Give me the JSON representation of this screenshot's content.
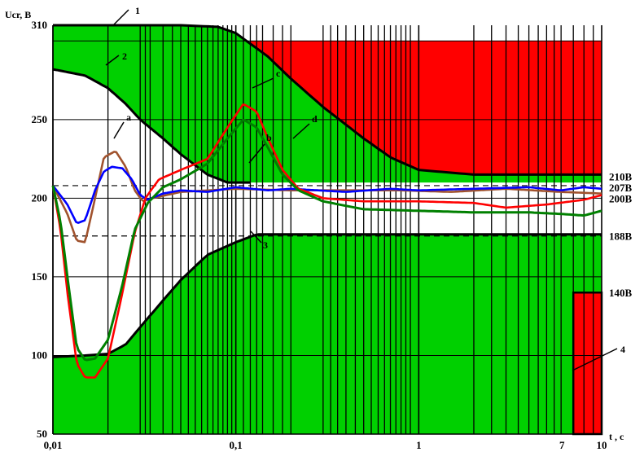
{
  "chart_data": {
    "type": "line",
    "ylabel": "Ucr, B",
    "xlabel": "t , c",
    "x_scale": "log",
    "xlim": [
      0.01,
      10
    ],
    "ylim": [
      50,
      310
    ],
    "x_ticks": [
      {
        "value": 0.01,
        "label": "0,01"
      },
      {
        "value": 0.1,
        "label": "0,1"
      },
      {
        "value": 1,
        "label": "1"
      },
      {
        "value": 7,
        "label": "7"
      },
      {
        "value": 10,
        "label": "10"
      }
    ],
    "y_ticks": [
      50,
      100,
      150,
      200,
      250,
      310
    ],
    "y_grid": [
      100,
      150,
      200,
      250,
      300
    ],
    "level_lines": [
      {
        "value": 210,
        "label": "210B"
      },
      {
        "value": 188,
        "label": "188B"
      }
    ],
    "right_labels": [
      {
        "value": 214,
        "label": "210B"
      },
      {
        "value": 207,
        "label": "207B"
      },
      {
        "value": 200,
        "label": "200B"
      },
      {
        "value": 176,
        "label": "188B"
      },
      {
        "value": 140,
        "label": "140B"
      }
    ],
    "curve_labels": [
      "1",
      "2",
      "3",
      "4",
      "a",
      "b",
      "c",
      "d"
    ],
    "colors": {
      "green_region": "#00d000",
      "red_region": "#ff0000",
      "boundary": "#000000",
      "a": "#a0522d",
      "b": "#0000ff",
      "c": "#ff0000",
      "d": "#008000"
    },
    "series": [
      {
        "key": "1",
        "role": "boundary",
        "x": [
          0.01,
          0.025,
          0.05,
          0.08,
          0.1,
          0.15,
          0.2,
          0.3,
          0.5,
          0.7,
          1,
          2,
          5,
          10
        ],
        "y": [
          310,
          310,
          310,
          309,
          305,
          290,
          276,
          258,
          238,
          226,
          218,
          215,
          215,
          215
        ]
      },
      {
        "key": "2",
        "role": "boundary",
        "x": [
          0.01,
          0.015,
          0.02,
          0.025,
          0.03,
          0.04,
          0.05,
          0.07,
          0.09,
          0.12
        ],
        "y": [
          282,
          278,
          270,
          260,
          250,
          238,
          228,
          215,
          210,
          210
        ]
      },
      {
        "key": "3",
        "role": "boundary",
        "x": [
          0.01,
          0.015,
          0.02,
          0.025,
          0.03,
          0.04,
          0.05,
          0.07,
          0.1,
          0.13,
          10
        ],
        "y": [
          99,
          100,
          101,
          107,
          118,
          135,
          148,
          164,
          172,
          177,
          177
        ]
      },
      {
        "key": "a",
        "x": [
          0.01,
          0.012,
          0.0135,
          0.015,
          0.017,
          0.019,
          0.022,
          0.025,
          0.028,
          0.031,
          0.035,
          0.05,
          0.1,
          0.2,
          0.4,
          0.8,
          1.5,
          3,
          6,
          10
        ],
        "y": [
          208,
          190,
          173,
          172,
          200,
          226,
          230,
          220,
          205,
          198,
          200,
          204,
          206,
          205,
          205,
          205,
          204,
          206,
          204,
          203
        ]
      },
      {
        "key": "b",
        "x": [
          0.01,
          0.012,
          0.0135,
          0.015,
          0.017,
          0.019,
          0.021,
          0.024,
          0.027,
          0.03,
          0.033,
          0.04,
          0.05,
          0.07,
          0.1,
          0.15,
          0.2,
          0.4,
          0.7,
          1,
          2,
          4,
          6,
          8,
          10
        ],
        "y": [
          208,
          196,
          184,
          186,
          205,
          217,
          220,
          219,
          212,
          202,
          199,
          203,
          205,
          204,
          207,
          205,
          206,
          204,
          206,
          205,
          206,
          207,
          205,
          207,
          206
        ]
      },
      {
        "key": "c",
        "x": [
          0.01,
          0.011,
          0.012,
          0.0135,
          0.015,
          0.017,
          0.02,
          0.024,
          0.028,
          0.032,
          0.038,
          0.05,
          0.07,
          0.09,
          0.11,
          0.13,
          0.15,
          0.18,
          0.22,
          0.3,
          0.5,
          1,
          2,
          3,
          5,
          8,
          10
        ],
        "y": [
          208,
          180,
          140,
          95,
          86,
          86,
          98,
          140,
          178,
          200,
          212,
          218,
          225,
          245,
          260,
          255,
          238,
          218,
          206,
          200,
          198,
          198,
          197,
          194,
          196,
          199,
          202
        ]
      },
      {
        "key": "d",
        "x": [
          0.01,
          0.011,
          0.012,
          0.0135,
          0.015,
          0.017,
          0.02,
          0.024,
          0.028,
          0.033,
          0.04,
          0.05,
          0.07,
          0.09,
          0.11,
          0.13,
          0.15,
          0.18,
          0.22,
          0.3,
          0.5,
          1,
          2,
          4,
          6,
          8,
          10
        ],
        "y": [
          208,
          185,
          150,
          105,
          97,
          98,
          110,
          145,
          180,
          197,
          207,
          212,
          222,
          238,
          250,
          245,
          232,
          215,
          205,
          198,
          193,
          192,
          191,
          191,
          190,
          189,
          192
        ]
      }
    ],
    "regions": [
      {
        "key": "green-upper",
        "color": "green",
        "description_value_range": [
          210,
          310
        ]
      },
      {
        "key": "green-lower",
        "color": "green",
        "description_value_range": [
          50,
          177
        ]
      },
      {
        "key": "red-upper",
        "color": "red",
        "x_range": [
          0.12,
          10
        ],
        "y_range": [
          215,
          310
        ]
      },
      {
        "key": "red-lower",
        "color": "red",
        "x_range": [
          7,
          10
        ],
        "y_range": [
          50,
          140
        ]
      }
    ],
    "dense_vertical_grid_note": "many vertical lines at logarithmic subdivisions"
  }
}
